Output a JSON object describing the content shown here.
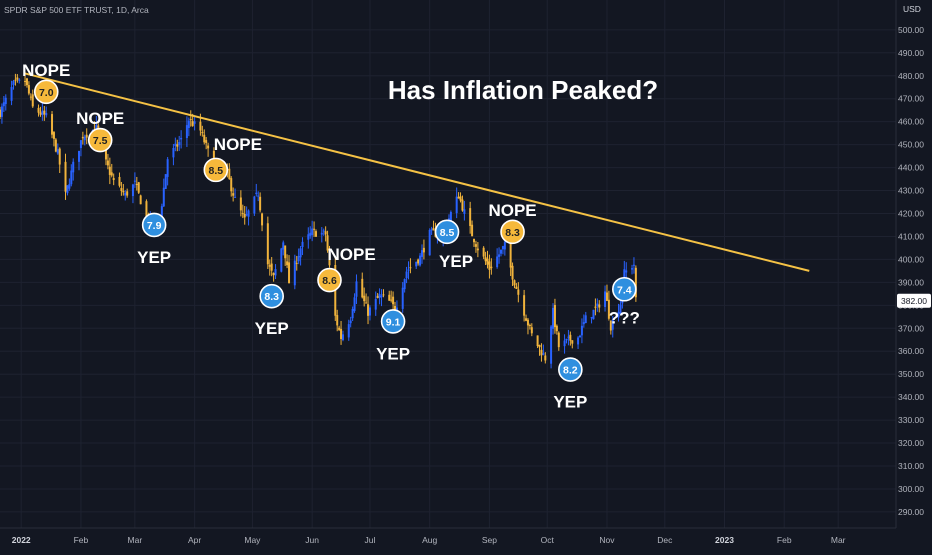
{
  "header": {
    "symbol_title": "SPDR S&P 500 ETF TRUST, 1D, Arca",
    "currency": "USD"
  },
  "headline": "Has Inflation Peaked?",
  "colors": {
    "background": "#131722",
    "grid": "#1e2230",
    "text": "#b2b5be",
    "candle_up": "#2962ff",
    "candle_down": "#f0b33c",
    "trendline": "#f5c245",
    "badge_nope": "#f6b93b",
    "badge_yep": "#2f8fdf",
    "price_label_bg": "#ffffff"
  },
  "chart_data": {
    "type": "candlestick",
    "title": "Has Inflation Peaked?",
    "y_axis": {
      "unit": "USD",
      "range": [
        283,
        513
      ],
      "ticks": [
        "290.00",
        "300.00",
        "310.00",
        "320.00",
        "330.00",
        "340.00",
        "350.00",
        "360.00",
        "370.00",
        "380.00",
        "390.00",
        "400.00",
        "410.00",
        "420.00",
        "430.00",
        "440.00",
        "450.00",
        "460.00",
        "470.00",
        "480.00",
        "490.00",
        "500.00"
      ]
    },
    "x_axis": {
      "range": [
        "2021-12-21",
        "2023-03-31"
      ],
      "ticks": [
        {
          "label": "2022",
          "date": "2022-01-01",
          "bold": true
        },
        {
          "label": "Feb",
          "date": "2022-02-01"
        },
        {
          "label": "Mar",
          "date": "2022-03-01"
        },
        {
          "label": "Apr",
          "date": "2022-04-01"
        },
        {
          "label": "May",
          "date": "2022-05-01"
        },
        {
          "label": "Jun",
          "date": "2022-06-01"
        },
        {
          "label": "Jul",
          "date": "2022-07-01"
        },
        {
          "label": "Aug",
          "date": "2022-08-01"
        },
        {
          "label": "Sep",
          "date": "2022-09-01"
        },
        {
          "label": "Oct",
          "date": "2022-10-01"
        },
        {
          "label": "Nov",
          "date": "2022-11-01"
        },
        {
          "label": "Dec",
          "date": "2022-12-01"
        },
        {
          "label": "2023",
          "date": "2023-01-01",
          "bold": true
        },
        {
          "label": "Feb",
          "date": "2023-02-01"
        },
        {
          "label": "Mar",
          "date": "2023-03-01"
        }
      ]
    },
    "price_path": [
      [
        "2021-12-21",
        464
      ],
      [
        "2021-12-28",
        476
      ],
      [
        "2022-01-03",
        478
      ],
      [
        "2022-01-07",
        466
      ],
      [
        "2022-01-14",
        462
      ],
      [
        "2022-01-20",
        446
      ],
      [
        "2022-01-24",
        428
      ],
      [
        "2022-01-28",
        441
      ],
      [
        "2022-02-02",
        454
      ],
      [
        "2022-02-09",
        457
      ],
      [
        "2022-02-14",
        442
      ],
      [
        "2022-02-18",
        434
      ],
      [
        "2022-02-24",
        428
      ],
      [
        "2022-03-01",
        433
      ],
      [
        "2022-03-08",
        416
      ],
      [
        "2022-03-14",
        418
      ],
      [
        "2022-03-18",
        444
      ],
      [
        "2022-03-25",
        452
      ],
      [
        "2022-03-29",
        461
      ],
      [
        "2022-04-04",
        456
      ],
      [
        "2022-04-11",
        440
      ],
      [
        "2022-04-18",
        437
      ],
      [
        "2022-04-22",
        426
      ],
      [
        "2022-04-27",
        417
      ],
      [
        "2022-05-04",
        429
      ],
      [
        "2022-05-09",
        398
      ],
      [
        "2022-05-12",
        392
      ],
      [
        "2022-05-17",
        408
      ],
      [
        "2022-05-20",
        390
      ],
      [
        "2022-05-26",
        405
      ],
      [
        "2022-06-01",
        412
      ],
      [
        "2022-06-08",
        411
      ],
      [
        "2022-06-13",
        375
      ],
      [
        "2022-06-16",
        366
      ],
      [
        "2022-06-21",
        375
      ],
      [
        "2022-06-24",
        390
      ],
      [
        "2022-06-30",
        377
      ],
      [
        "2022-07-06",
        384
      ],
      [
        "2022-07-12",
        381
      ],
      [
        "2022-07-14",
        378
      ],
      [
        "2022-07-20",
        395
      ],
      [
        "2022-07-27",
        401
      ],
      [
        "2022-08-01",
        411
      ],
      [
        "2022-08-08",
        412
      ],
      [
        "2022-08-16",
        428
      ],
      [
        "2022-08-22",
        413
      ],
      [
        "2022-08-26",
        405
      ],
      [
        "2022-09-01",
        396
      ],
      [
        "2022-09-09",
        406
      ],
      [
        "2022-09-13",
        393
      ],
      [
        "2022-09-16",
        385
      ],
      [
        "2022-09-23",
        367
      ],
      [
        "2022-09-30",
        357
      ],
      [
        "2022-10-04",
        377
      ],
      [
        "2022-10-07",
        362
      ],
      [
        "2022-10-13",
        365
      ],
      [
        "2022-10-17",
        366
      ],
      [
        "2022-10-21",
        374
      ],
      [
        "2022-10-27",
        379
      ],
      [
        "2022-10-31",
        386
      ],
      [
        "2022-11-03",
        371
      ],
      [
        "2022-11-08",
        381
      ],
      [
        "2022-11-10",
        394
      ],
      [
        "2022-11-15",
        398
      ],
      [
        "2022-11-16",
        382
      ]
    ],
    "last_price": "382.00",
    "trendline": {
      "from": {
        "date": "2022-01-03",
        "price": 481
      },
      "to": {
        "date": "2023-02-14",
        "price": 395
      }
    },
    "annotations": [
      {
        "date": "2022-01-14",
        "price": 473,
        "cpi": "7.0",
        "verdict": "NOPE",
        "kind": "nope",
        "label_pos": "above"
      },
      {
        "date": "2022-02-11",
        "price": 452,
        "cpi": "7.5",
        "verdict": "NOPE",
        "kind": "nope",
        "label_pos": "above"
      },
      {
        "date": "2022-03-11",
        "price": 415,
        "cpi": "7.9",
        "verdict": "YEP",
        "kind": "yep",
        "label_pos": "below"
      },
      {
        "date": "2022-04-12",
        "price": 439,
        "cpi": "8.5",
        "verdict": "NOPE",
        "kind": "nope",
        "label_pos": "above-right"
      },
      {
        "date": "2022-05-11",
        "price": 384,
        "cpi": "8.3",
        "verdict": "YEP",
        "kind": "yep",
        "label_pos": "below"
      },
      {
        "date": "2022-06-10",
        "price": 391,
        "cpi": "8.6",
        "verdict": "NOPE",
        "kind": "nope",
        "label_pos": "above-right"
      },
      {
        "date": "2022-07-13",
        "price": 373,
        "cpi": "9.1",
        "verdict": "YEP",
        "kind": "yep",
        "label_pos": "below"
      },
      {
        "date": "2022-08-10",
        "price": 412,
        "cpi": "8.5",
        "verdict": "YEP",
        "kind": "yep",
        "label_pos": "below-right"
      },
      {
        "date": "2022-09-13",
        "price": 412,
        "cpi": "8.3",
        "verdict": "NOPE",
        "kind": "nope",
        "label_pos": "above"
      },
      {
        "date": "2022-10-13",
        "price": 352,
        "cpi": "8.2",
        "verdict": "YEP",
        "kind": "yep",
        "label_pos": "below"
      },
      {
        "date": "2022-11-10",
        "price": 387,
        "cpi": "7.4",
        "verdict": "???",
        "kind": "yep",
        "label_pos": "below"
      }
    ]
  }
}
